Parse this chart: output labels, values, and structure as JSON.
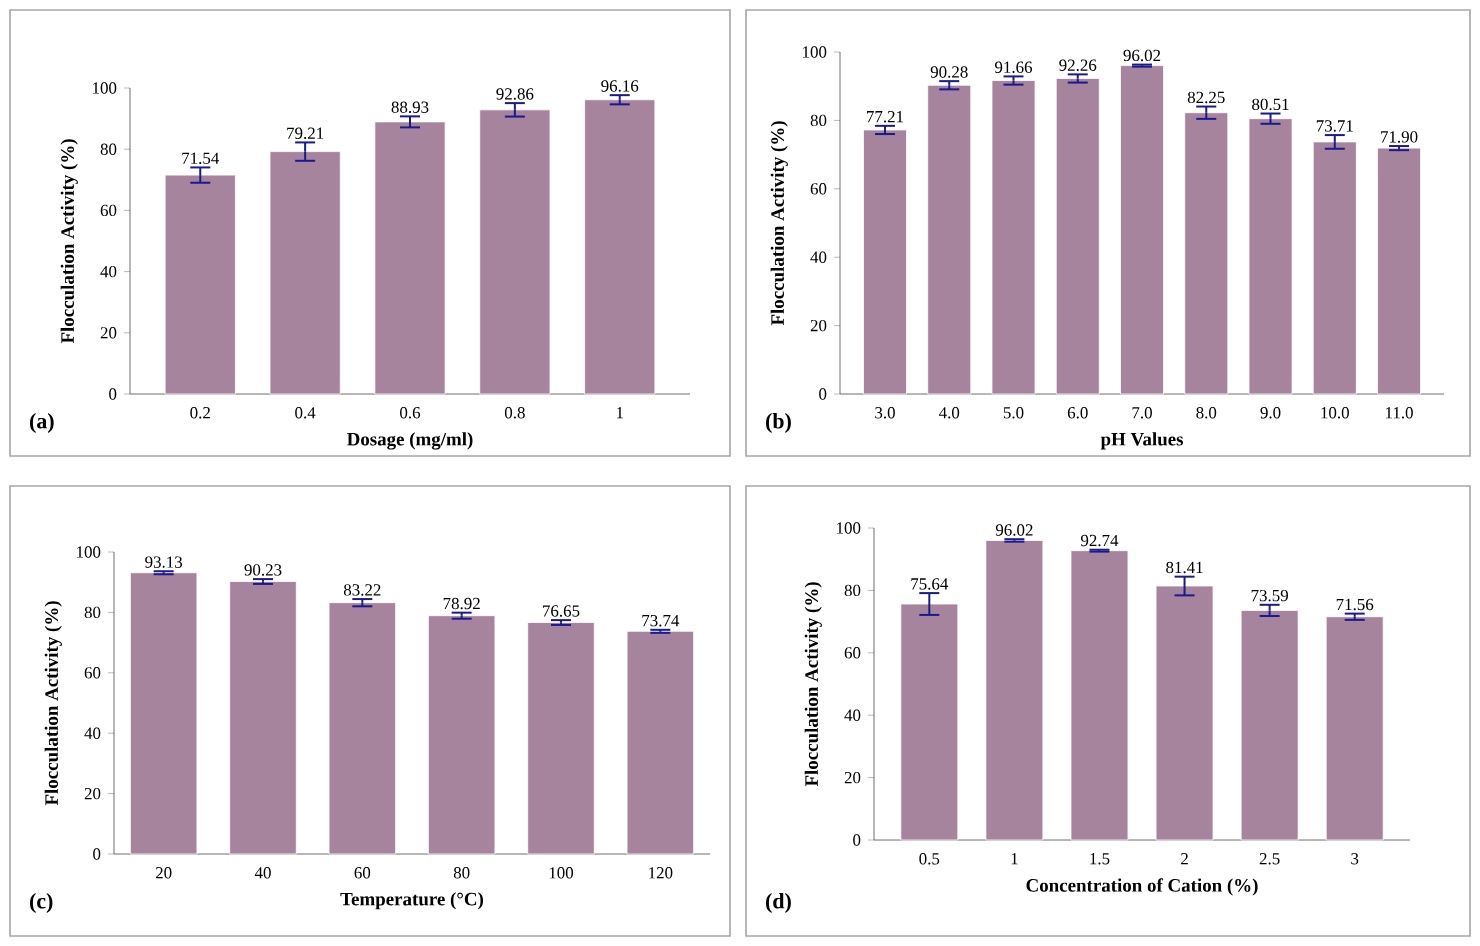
{
  "chart_data": [
    {
      "type": "bar",
      "xlabel": "Dosage (mg/ml)",
      "ylabel": "Flocculation Activity (%)",
      "categories": [
        "0.2",
        "0.4",
        "0.6",
        "0.8",
        "1"
      ],
      "values": [
        71.54,
        79.21,
        88.93,
        92.86,
        96.16
      ],
      "errors": [
        2.5,
        3,
        1.8,
        2.2,
        1.5
      ],
      "value_labels": [
        "71.54",
        "79.21",
        "88.93",
        "92.86",
        "96.16"
      ],
      "color": "#a6849e",
      "ylim": [
        0,
        100
      ],
      "yticks": [
        0,
        20,
        40,
        60,
        80,
        100
      ],
      "annotations": [
        "(a)"
      ]
    },
    {
      "type": "bar",
      "xlabel": "pH Values",
      "ylabel": "Flocculation Activity (%)",
      "categories": [
        "3.0",
        "4.0",
        "5.0",
        "6.0",
        "7.0",
        "8.0",
        "9.0",
        "10.0",
        "11.0"
      ],
      "values": [
        77.21,
        90.28,
        91.66,
        92.26,
        96.02,
        82.25,
        80.51,
        73.71,
        71.9
      ],
      "errors": [
        1.2,
        1.2,
        1.2,
        1.2,
        0.3,
        1.8,
        1.5,
        2,
        0.6
      ],
      "value_labels": [
        "77.21",
        "90.28",
        "91.66",
        "92.26",
        "96.02",
        "82.25",
        "80.51",
        "73.71",
        "71.90"
      ],
      "color": "#a6849e",
      "ylim": [
        0,
        100
      ],
      "yticks": [
        0,
        20,
        40,
        60,
        80,
        100
      ],
      "annotations": [
        "(b)"
      ]
    },
    {
      "type": "bar",
      "xlabel": "Temperature (°C)",
      "ylabel": "Flocculation Activity (%)",
      "categories": [
        "20",
        "40",
        "60",
        "80",
        "100",
        "120"
      ],
      "values": [
        93.13,
        90.23,
        83.22,
        78.92,
        76.65,
        73.74
      ],
      "errors": [
        0.5,
        0.8,
        1.2,
        1,
        0.8,
        0.5
      ],
      "value_labels": [
        "93.13",
        "90.23",
        "83.22",
        "78.92",
        "76.65",
        "73.74"
      ],
      "color": "#a6849e",
      "ylim": [
        0,
        100
      ],
      "yticks": [
        0,
        20,
        40,
        60,
        80,
        100
      ],
      "annotations": [
        "(c)"
      ]
    },
    {
      "type": "bar",
      "xlabel": "Concentration of Cation (%)",
      "ylabel": "Flocculation Activity (%)",
      "categories": [
        "0.5",
        "1",
        "1.5",
        "2",
        "2.5",
        "3"
      ],
      "values": [
        75.64,
        96.02,
        92.74,
        81.41,
        73.59,
        71.56
      ],
      "errors": [
        3.5,
        0.4,
        0.3,
        3,
        1.8,
        1
      ],
      "value_labels": [
        "75.64",
        "96.02",
        "92.74",
        "81.41",
        "73.59",
        "71.56"
      ],
      "color": "#a6849e",
      "ylim": [
        0,
        100
      ],
      "yticks": [
        0,
        20,
        40,
        60,
        80,
        100
      ],
      "annotations": [
        "(d)"
      ]
    }
  ]
}
